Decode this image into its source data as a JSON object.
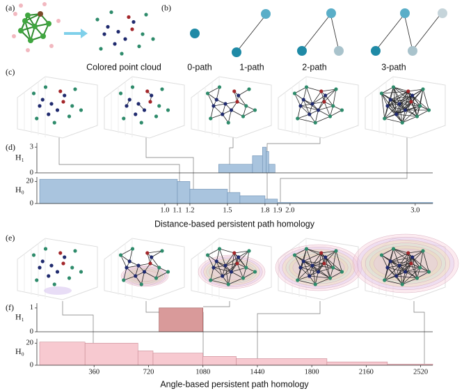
{
  "labels": [
    "(a)",
    "(b)",
    "(c)",
    "(d)",
    "(e)",
    "(f)"
  ],
  "point_cloud_caption": "Colored point cloud",
  "paths": [
    "0-path",
    "1-path",
    "2-path",
    "3-path"
  ],
  "distance": {
    "xlabel": "Distance-based persistent path homology",
    "xlim": [
      0,
      3.14
    ],
    "xticks": [
      {
        "value": 1,
        "label": "1.0"
      },
      1.1,
      1.2,
      1.5,
      1.8,
      1.9,
      {
        "value": 2,
        "label": "2.0"
      },
      {
        "value": 3,
        "label": "3.0"
      }
    ],
    "color": "#a9c4de",
    "edge": "#6d8fb3",
    "h1": {
      "name": "H₁",
      "ylim": [
        0,
        3.5
      ],
      "yticks": [
        0,
        3
      ],
      "bins": [
        1.43,
        1.7,
        1.78,
        1.81,
        1.83,
        1.88
      ],
      "values": [
        1,
        2,
        3,
        2.5,
        1
      ]
    },
    "h0": {
      "name": "H₀",
      "ylim": [
        0,
        24
      ],
      "yticks": [
        0,
        20
      ],
      "bins": [
        0,
        1.1,
        1.2,
        1.5,
        1.6,
        1.8,
        1.9,
        3.14
      ],
      "values": [
        22,
        20,
        13,
        10,
        7,
        4,
        1
      ]
    }
  },
  "angle": {
    "xlabel": "Angle-based persistent path homology",
    "xlim": [
      0,
      2600
    ],
    "xticks": [
      360,
      720,
      1080,
      1440,
      1800,
      2160,
      2520
    ],
    "color": "#f7c9d0",
    "edge": "#c98b95",
    "h1": {
      "name": "H₁",
      "ylim": [
        0,
        1.2
      ],
      "yticks": [
        0,
        1
      ],
      "color": "#d99a9a",
      "edge": "#9a4f4f",
      "bins": [
        790,
        1080
      ],
      "values": [
        1
      ]
    },
    "h0": {
      "name": "H₀",
      "ylim": [
        0,
        24
      ],
      "yticks": [
        0,
        20
      ],
      "bins": [
        0,
        300,
        650,
        750,
        1080,
        1300,
        1900,
        2300,
        2600
      ],
      "values": [
        21,
        20,
        13,
        11,
        8,
        6,
        3,
        1
      ]
    }
  }
}
